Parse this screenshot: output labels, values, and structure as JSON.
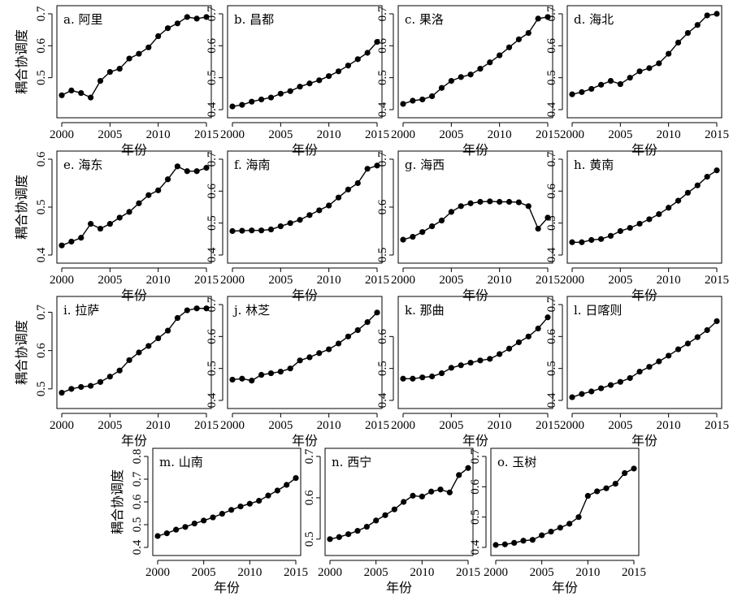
{
  "chart_data": {
    "type": "line",
    "xlabel": "年份",
    "ylabel": "耦合协调度",
    "x": [
      2000,
      2001,
      2002,
      2003,
      2004,
      2005,
      2006,
      2007,
      2008,
      2009,
      2010,
      2011,
      2012,
      2013,
      2014,
      2015
    ],
    "x_ticks": [
      2000,
      2005,
      2010,
      2015
    ],
    "grid": false,
    "legend": "none",
    "panels": [
      {
        "label": "a. 阿里",
        "ylim": [
          0.4,
          0.7
        ],
        "y_ticks": [
          0.5,
          0.6,
          0.7
        ],
        "values": [
          0.445,
          0.46,
          0.452,
          0.438,
          0.49,
          0.518,
          0.528,
          0.56,
          0.575,
          0.595,
          0.63,
          0.655,
          0.67,
          0.69,
          0.685,
          0.69
        ]
      },
      {
        "label": "b. 昌都",
        "ylim": [
          0.4,
          0.7
        ],
        "y_ticks": [
          0.4,
          0.5,
          0.6,
          0.7
        ],
        "values": [
          0.41,
          0.415,
          0.425,
          0.432,
          0.438,
          0.45,
          0.458,
          0.472,
          0.482,
          0.492,
          0.505,
          0.52,
          0.538,
          0.558,
          0.578,
          0.612
        ]
      },
      {
        "label": "c. 果洛",
        "ylim": [
          0.4,
          0.7
        ],
        "y_ticks": [
          0.4,
          0.5,
          0.6,
          0.7
        ],
        "values": [
          0.418,
          0.428,
          0.432,
          0.442,
          0.468,
          0.49,
          0.502,
          0.51,
          0.528,
          0.548,
          0.57,
          0.595,
          0.62,
          0.64,
          0.685,
          0.69
        ]
      },
      {
        "label": "d. 海北",
        "ylim": [
          0.4,
          0.7
        ],
        "y_ticks": [
          0.4,
          0.5,
          0.6,
          0.7
        ],
        "values": [
          0.448,
          0.455,
          0.465,
          0.478,
          0.49,
          0.48,
          0.5,
          0.52,
          0.53,
          0.545,
          0.575,
          0.61,
          0.64,
          0.665,
          0.695,
          0.7
        ]
      },
      {
        "label": "e. 海东",
        "ylim": [
          0.4,
          0.6
        ],
        "y_ticks": [
          0.4,
          0.5,
          0.6
        ],
        "values": [
          0.42,
          0.428,
          0.436,
          0.465,
          0.455,
          0.465,
          0.478,
          0.49,
          0.508,
          0.525,
          0.535,
          0.558,
          0.585,
          0.575,
          0.575,
          0.582
        ]
      },
      {
        "label": "f. 海南",
        "ylim": [
          0.4,
          0.7
        ],
        "y_ticks": [
          0.4,
          0.5,
          0.6,
          0.7
        ],
        "values": [
          0.475,
          0.476,
          0.477,
          0.477,
          0.48,
          0.49,
          0.5,
          0.51,
          0.525,
          0.54,
          0.555,
          0.58,
          0.605,
          0.625,
          0.67,
          0.68
        ]
      },
      {
        "label": "g. 海西",
        "ylim": [
          0.5,
          0.7
        ],
        "y_ticks": [
          0.5,
          0.6,
          0.7
        ],
        "values": [
          0.532,
          0.538,
          0.548,
          0.56,
          0.572,
          0.59,
          0.602,
          0.608,
          0.611,
          0.612,
          0.611,
          0.611,
          0.61,
          0.602,
          0.555,
          0.578
        ]
      },
      {
        "label": "h. 黄南",
        "ylim": [
          0.4,
          0.7
        ],
        "y_ticks": [
          0.4,
          0.5,
          0.6,
          0.7
        ],
        "values": [
          0.44,
          0.44,
          0.447,
          0.45,
          0.46,
          0.475,
          0.485,
          0.498,
          0.512,
          0.528,
          0.548,
          0.57,
          0.595,
          0.618,
          0.645,
          0.665
        ]
      },
      {
        "label": "i. 拉萨",
        "ylim": [
          0.47,
          0.72
        ],
        "y_ticks": [
          0.5,
          0.6,
          0.7
        ],
        "values": [
          0.49,
          0.5,
          0.505,
          0.508,
          0.518,
          0.532,
          0.548,
          0.575,
          0.595,
          0.612,
          0.632,
          0.652,
          0.685,
          0.705,
          0.71,
          0.71
        ]
      },
      {
        "label": "j. 林芝",
        "ylim": [
          0.4,
          0.7
        ],
        "y_ticks": [
          0.4,
          0.5,
          0.6,
          0.7
        ],
        "values": [
          0.465,
          0.468,
          0.462,
          0.48,
          0.485,
          0.49,
          0.5,
          0.525,
          0.535,
          0.548,
          0.56,
          0.578,
          0.6,
          0.62,
          0.645,
          0.675
        ]
      },
      {
        "label": "k. 那曲",
        "ylim": [
          0.4,
          0.7
        ],
        "y_ticks": [
          0.4,
          0.5,
          0.6
        ],
        "values": [
          0.468,
          0.468,
          0.472,
          0.475,
          0.485,
          0.502,
          0.51,
          0.518,
          0.525,
          0.53,
          0.545,
          0.562,
          0.582,
          0.6,
          0.625,
          0.66
        ]
      },
      {
        "label": "l. 日喀则",
        "ylim": [
          0.4,
          0.7
        ],
        "y_ticks": [
          0.4,
          0.5,
          0.6,
          0.7
        ],
        "values": [
          0.41,
          0.42,
          0.428,
          0.438,
          0.448,
          0.458,
          0.47,
          0.49,
          0.505,
          0.522,
          0.54,
          0.56,
          0.578,
          0.598,
          0.62,
          0.648
        ]
      },
      {
        "label": "m. 山南",
        "ylim": [
          0.4,
          0.8
        ],
        "y_ticks": [
          0.4,
          0.5,
          0.6,
          0.7,
          0.8
        ],
        "values": [
          0.45,
          0.462,
          0.478,
          0.49,
          0.505,
          0.518,
          0.532,
          0.548,
          0.565,
          0.58,
          0.592,
          0.605,
          0.628,
          0.65,
          0.675,
          0.705
        ]
      },
      {
        "label": "n. 西宁",
        "ylim": [
          0.48,
          0.7
        ],
        "y_ticks": [
          0.5,
          0.6,
          0.7
        ],
        "values": [
          0.5,
          0.505,
          0.512,
          0.52,
          0.53,
          0.545,
          0.558,
          0.572,
          0.59,
          0.605,
          0.603,
          0.615,
          0.62,
          0.613,
          0.655,
          0.672
        ]
      },
      {
        "label": "o. 玉树",
        "ylim": [
          0.4,
          0.7
        ],
        "y_ticks": [
          0.4,
          0.5,
          0.6,
          0.7
        ],
        "values": [
          0.408,
          0.41,
          0.415,
          0.422,
          0.425,
          0.44,
          0.452,
          0.465,
          0.478,
          0.5,
          0.57,
          0.585,
          0.595,
          0.61,
          0.645,
          0.66
        ]
      }
    ]
  }
}
